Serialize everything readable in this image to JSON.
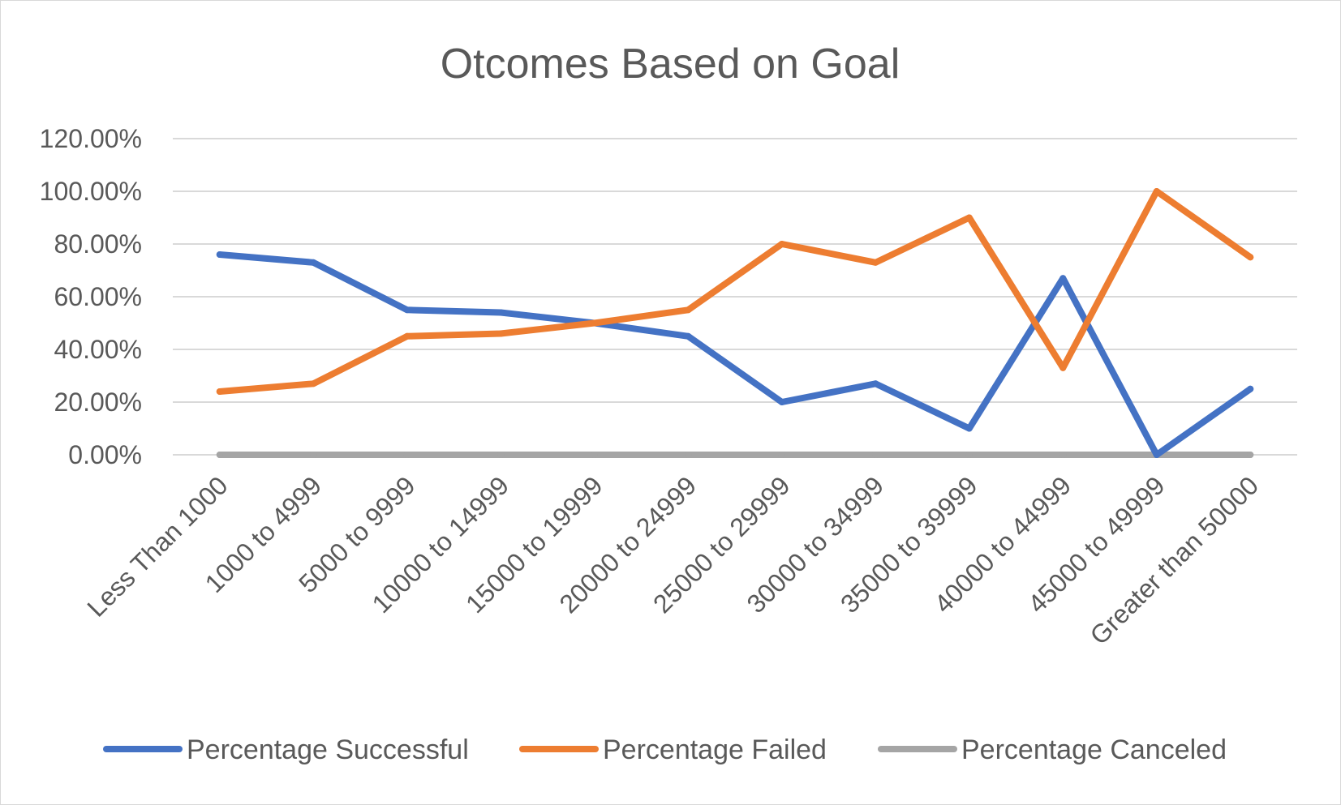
{
  "chart_data": {
    "type": "line",
    "title": "Otcomes Based on Goal",
    "xlabel": "",
    "ylabel": "",
    "ylim": [
      0,
      1.2
    ],
    "y_ticks": [
      0,
      0.2,
      0.4,
      0.6,
      0.8,
      1.0,
      1.2
    ],
    "y_tick_labels": [
      "0.00%",
      "20.00%",
      "40.00%",
      "60.00%",
      "80.00%",
      "100.00%",
      "120.00%"
    ],
    "grid": true,
    "legend_position": "bottom",
    "categories": [
      "Less Than 1000",
      "1000 to 4999",
      "5000 to 9999",
      "10000 to 14999",
      "15000 to 19999",
      "20000 to 24999",
      "25000 to 29999",
      "30000 to 34999",
      "35000 to 39999",
      "40000 to 44999",
      "45000 to 49999",
      "Greater than 50000"
    ],
    "series": [
      {
        "name": "Percentage Successful",
        "color": "#4472c4",
        "values": [
          0.76,
          0.73,
          0.55,
          0.54,
          0.5,
          0.45,
          0.2,
          0.27,
          0.1,
          0.67,
          0.0,
          0.25
        ]
      },
      {
        "name": "Percentage Failed",
        "color": "#ed7d31",
        "values": [
          0.24,
          0.27,
          0.45,
          0.46,
          0.5,
          0.55,
          0.8,
          0.73,
          0.9,
          0.33,
          1.0,
          0.75
        ]
      },
      {
        "name": "Percentage Canceled",
        "color": "#a5a5a5",
        "values": [
          0,
          0,
          0,
          0,
          0,
          0,
          0,
          0,
          0,
          0,
          0,
          0
        ]
      }
    ]
  }
}
